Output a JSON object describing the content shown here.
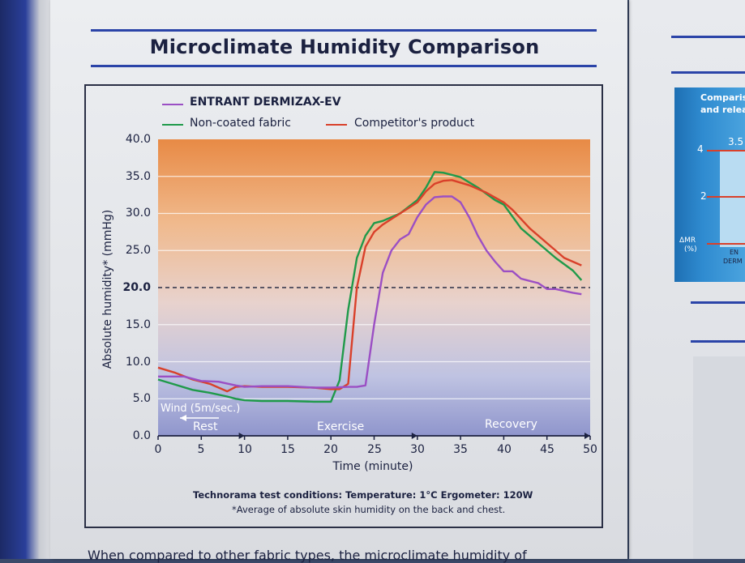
{
  "title": "Microclimate Humidity Comparison",
  "legend": {
    "entrant": "ENTRANT DERMIZAX-EV",
    "non_coated": "Non-coated fabric",
    "competitor": "Competitor's product"
  },
  "axes": {
    "ylabel": "Absolute humidity* (mmHg)",
    "xlabel": "Time (minute)",
    "yticks": [
      "0.0",
      "5.0",
      "10.0",
      "15.0",
      "20.0",
      "25.0",
      "30.0",
      "35.0",
      "40.0"
    ],
    "xticks": [
      "0",
      "5",
      "10",
      "15",
      "20",
      "25",
      "30",
      "35",
      "40",
      "45",
      "50"
    ]
  },
  "annotations": {
    "wind": "Wind (5m/sec.)",
    "rest": "Rest",
    "exercise": "Exercise",
    "recovery": "Recovery"
  },
  "notes": {
    "conditions": "Technorama test conditions:  Temperature: 1°C  Ergometer: 120W",
    "footnote": "*Average of absolute skin humidity on the back and chest."
  },
  "bottom_text": "When compared to other fabric types, the microclimate humidity of",
  "side_panel": {
    "title_line1": "Comparis",
    "title_line2": "and relea",
    "value_label": "3.5",
    "tick_4": "4",
    "tick_2": "2",
    "axis_line1": "ΔMR",
    "axis_line2": "(%)",
    "bar_label1": "EN",
    "bar_label2": "DERM"
  },
  "colors": {
    "entrant": "#9b4fc4",
    "non_coated": "#1f9a4a",
    "competitor": "#d9402a",
    "rule": "#2b44a8"
  },
  "chart_data": {
    "type": "line",
    "title": "Microclimate Humidity Comparison",
    "xlabel": "Time (minute)",
    "ylabel": "Absolute humidity* (mmHg)",
    "xlim": [
      0,
      50
    ],
    "ylim": [
      0,
      40
    ],
    "reference_line": 20.0,
    "phases": [
      {
        "label": "Rest",
        "from": 0,
        "to": 10
      },
      {
        "label": "Exercise",
        "from": 10,
        "to": 30
      },
      {
        "label": "Recovery",
        "from": 30,
        "to": 50
      }
    ],
    "series": [
      {
        "name": "ENTRANT DERMIZAX-EV",
        "x": [
          0,
          3,
          5,
          7,
          9,
          10,
          12,
          15,
          18,
          20,
          22,
          23,
          24,
          25,
          26,
          27,
          28,
          29,
          30,
          31,
          32,
          33,
          34,
          35,
          36,
          37,
          38,
          39,
          40,
          41,
          42,
          43,
          44,
          45,
          46,
          48,
          49
        ],
        "y": [
          8.0,
          8.0,
          7.4,
          7.3,
          6.8,
          6.6,
          6.7,
          6.7,
          6.5,
          6.5,
          6.6,
          6.6,
          6.8,
          15.0,
          22.0,
          25.0,
          26.5,
          27.2,
          29.5,
          31.2,
          32.2,
          32.3,
          32.3,
          31.5,
          29.5,
          27.0,
          25.0,
          23.5,
          22.2,
          22.2,
          21.2,
          20.9,
          20.6,
          19.8,
          19.8,
          19.3,
          19.1
        ]
      },
      {
        "name": "Non-coated fabric",
        "x": [
          0,
          2,
          4,
          6,
          8,
          9,
          10,
          12,
          15,
          18,
          20,
          21,
          22,
          23,
          24,
          25,
          26,
          28,
          30,
          31,
          32,
          33,
          35,
          37,
          39,
          40,
          42,
          44,
          46,
          48,
          49
        ],
        "y": [
          7.6,
          6.9,
          6.2,
          5.8,
          5.3,
          5.0,
          4.8,
          4.7,
          4.7,
          4.6,
          4.6,
          7.5,
          17.0,
          24.0,
          27.0,
          28.7,
          29.0,
          30.0,
          31.8,
          33.5,
          35.6,
          35.5,
          34.9,
          33.5,
          31.8,
          31.2,
          28.0,
          26.0,
          24.0,
          22.3,
          21.0
        ]
      },
      {
        "name": "Competitor's product",
        "x": [
          0,
          2,
          4,
          6,
          8,
          9,
          10,
          12,
          15,
          18,
          20,
          21,
          22,
          23,
          24,
          25,
          26,
          28,
          30,
          31,
          32,
          33,
          34,
          36,
          38,
          40,
          41,
          43,
          45,
          47,
          49
        ],
        "y": [
          9.2,
          8.5,
          7.6,
          7.0,
          6.0,
          6.6,
          6.7,
          6.6,
          6.6,
          6.5,
          6.3,
          6.3,
          7.0,
          20.0,
          25.5,
          27.5,
          28.5,
          30.0,
          31.5,
          33.0,
          34.0,
          34.4,
          34.5,
          33.8,
          32.8,
          31.5,
          30.5,
          28.0,
          26.0,
          24.0,
          23.0
        ]
      }
    ]
  }
}
